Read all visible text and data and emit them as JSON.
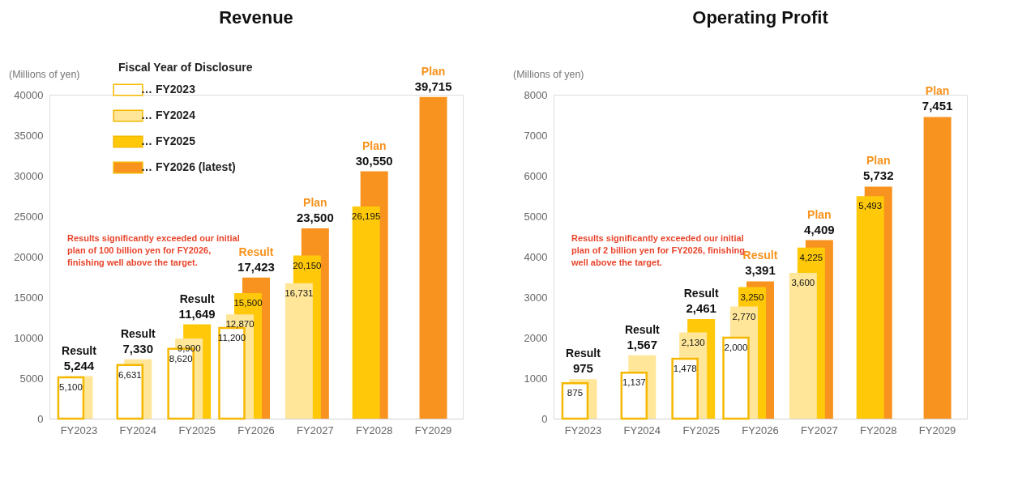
{
  "chart_data": [
    {
      "type": "bar",
      "title": "Revenue",
      "ylabel": "(Millions of yen)",
      "categories": [
        "FY2023",
        "FY2024",
        "FY2025",
        "FY2026",
        "FY2027",
        "FY2028",
        "FY2029"
      ],
      "series": [
        {
          "name": "… FY2023",
          "color": "#ffffff",
          "values": [
            5100,
            6631,
            8620,
            11200,
            null,
            null,
            null
          ],
          "value_labels": [
            "5,100",
            "6,631",
            "8,620",
            "11,200",
            null,
            null,
            null
          ]
        },
        {
          "name": "… FY2024",
          "color": "#ffe699",
          "values": [
            5244,
            7330,
            9900,
            12870,
            16731,
            null,
            null
          ],
          "value_labels": [
            "5,244",
            "7,330",
            "9,900",
            "12,870",
            "16,731",
            null,
            null
          ]
        },
        {
          "name": "… FY2025",
          "color": "#ffc90a",
          "values": [
            null,
            null,
            11649,
            15500,
            20150,
            26195,
            null
          ],
          "value_labels": [
            null,
            null,
            "11,649",
            "15,500",
            "20,150",
            "26,195",
            null
          ]
        },
        {
          "name": "… FY2026 (latest)",
          "color": "#f7931e",
          "values": [
            null,
            null,
            null,
            17423,
            23500,
            30550,
            39715
          ],
          "value_labels": [
            null,
            null,
            null,
            "17,423",
            "23,500",
            "30,550",
            "39,715"
          ]
        }
      ],
      "ylim": [
        0,
        40000
      ],
      "yticks": [
        0,
        5000,
        10000,
        15000,
        20000,
        25000,
        30000,
        35000,
        40000
      ],
      "grid": false,
      "legend": "top left",
      "legend_title": "Fiscal Year of Disclosure",
      "annotations": [
        {
          "text": "Result",
          "x": "FY2023",
          "y": 5244
        },
        {
          "text": "Result",
          "x": "FY2024",
          "y": 7330
        },
        {
          "text": "Result",
          "x": "FY2025",
          "y": 11649
        },
        {
          "text": "Result",
          "x": "FY2026",
          "y": 17423
        },
        {
          "text": "Plan",
          "x": "FY2027",
          "y": 23500
        },
        {
          "text": "Plan",
          "x": "FY2028",
          "y": 30550
        },
        {
          "text": "Plan",
          "x": "FY2029",
          "y": 39715
        },
        "Results significantly exceeded our initial plan of 100 billion yen for FY2026, finishing well above the target."
      ]
    },
    {
      "type": "bar",
      "title": "Operating Profit",
      "ylabel": "(Millions of yen)",
      "categories": [
        "FY2023",
        "FY2024",
        "FY2025",
        "FY2026",
        "FY2027",
        "FY2028",
        "FY2029"
      ],
      "series": [
        {
          "color": "#ffffff",
          "values": [
            875,
            1137,
            1478,
            2000,
            null,
            null,
            null
          ],
          "value_labels": [
            "875",
            "1,137",
            "1,478",
            "2,000",
            null,
            null,
            null
          ]
        },
        {
          "color": "#ffe699",
          "values": [
            975,
            1567,
            2130,
            2770,
            3600,
            null,
            null
          ],
          "value_labels": [
            "975",
            "1,567",
            "2,130",
            "2,770",
            "3,600",
            null,
            null
          ]
        },
        {
          "color": "#ffc90a",
          "values": [
            null,
            null,
            2461,
            3250,
            4225,
            5493,
            null
          ],
          "value_labels": [
            null,
            null,
            "2,461",
            "3,250",
            "4,225",
            "5,493",
            null
          ]
        },
        {
          "color": "#f7931e",
          "values": [
            null,
            null,
            null,
            3391,
            4409,
            5732,
            7451
          ],
          "value_labels": [
            null,
            null,
            null,
            "3,391",
            "4,409",
            "5,732",
            "7,451"
          ]
        }
      ],
      "ylim": [
        0,
        8000
      ],
      "yticks": [
        0,
        1000,
        2000,
        3000,
        4000,
        5000,
        6000,
        7000,
        8000
      ],
      "grid": false,
      "annotations": [
        {
          "text": "Result",
          "x": "FY2023",
          "y": 975
        },
        {
          "text": "Result",
          "x": "FY2024",
          "y": 1567
        },
        {
          "text": "Result",
          "x": "FY2025",
          "y": 2461
        },
        {
          "text": "Result",
          "x": "FY2026",
          "y": 3391
        },
        {
          "text": "Plan",
          "x": "FY2027",
          "y": 4409
        },
        {
          "text": "Plan",
          "x": "FY2028",
          "y": 5732
        },
        {
          "text": "Plan",
          "x": "FY2029",
          "y": 7451
        },
        "Results significantly exceeded our initial plan of 2 billion yen for FY2026, finishing well above the target."
      ]
    }
  ]
}
